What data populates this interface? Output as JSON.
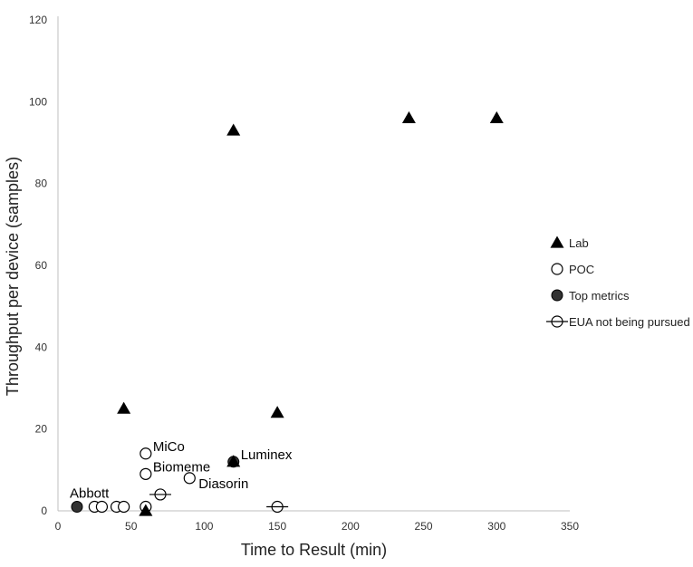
{
  "chart_data": {
    "type": "scatter",
    "title": "",
    "xlabel": "Time to Result (min)",
    "ylabel": "Throughput per device (samples)",
    "xlim": [
      0,
      350
    ],
    "ylim": [
      0,
      120
    ],
    "xticks": [
      0,
      50,
      100,
      150,
      200,
      250,
      300,
      350
    ],
    "yticks": [
      0,
      20,
      40,
      60,
      80,
      100,
      120
    ],
    "grid": false,
    "legend_position": "right",
    "legend": [
      {
        "label": "Lab",
        "marker": "triangle"
      },
      {
        "label": "POC",
        "marker": "open-circle"
      },
      {
        "label": "Top metrics",
        "marker": "filled-circle"
      },
      {
        "label": "EUA not being pursued",
        "marker": "crossed-circle"
      }
    ],
    "series": [
      {
        "name": "Lab",
        "marker": "triangle",
        "color": "#000000",
        "points": [
          [
            45,
            25
          ],
          [
            60,
            0
          ],
          [
            120,
            93
          ],
          [
            120,
            12
          ],
          [
            150,
            24
          ],
          [
            240,
            96
          ],
          [
            300,
            96
          ]
        ]
      },
      {
        "name": "POC",
        "marker": "open-circle",
        "color": "#000000",
        "points": [
          [
            25,
            1
          ],
          [
            30,
            1
          ],
          [
            40,
            1
          ],
          [
            45,
            1
          ],
          [
            60,
            1
          ],
          [
            60,
            9
          ],
          [
            60,
            14
          ],
          [
            90,
            8
          ]
        ]
      },
      {
        "name": "Top metrics",
        "marker": "filled-circle",
        "color": "#333333",
        "points": [
          [
            13,
            1
          ],
          [
            120,
            12
          ]
        ]
      },
      {
        "name": "EUA not being pursued",
        "marker": "crossed-circle",
        "color": "#000000",
        "points": [
          [
            70,
            4
          ],
          [
            150,
            1
          ]
        ]
      }
    ],
    "annotations": [
      {
        "text": "Abbott",
        "x": 13,
        "y": 1,
        "pos": "above"
      },
      {
        "text": "MiCo",
        "x": 60,
        "y": 14,
        "pos": "right"
      },
      {
        "text": "Biomeme",
        "x": 60,
        "y": 9,
        "pos": "right"
      },
      {
        "text": "Diasorin",
        "x": 90,
        "y": 8,
        "pos": "right-below"
      },
      {
        "text": "Luminex",
        "x": 120,
        "y": 12,
        "pos": "right"
      }
    ]
  }
}
